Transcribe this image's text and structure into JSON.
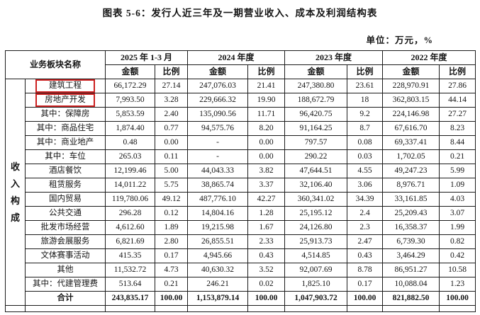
{
  "title": "图表 5-6：发行人近三年及一期营业收入、成本及利润结构表",
  "unit_label": "单位：万元，%",
  "highlight_color": "#cc2121",
  "table": {
    "corner_header": "业务板块名称",
    "side_label": "收入构成",
    "period_headers": [
      "2025 年 1-3 月",
      "2024 年度",
      "2023 年度",
      "2022 年度"
    ],
    "amount_header": "金额",
    "ratio_header": "比例",
    "rows": [
      {
        "label": "建筑工程",
        "boxed_label": true,
        "boxed_ratio": true,
        "bold": false,
        "cells": [
          "66,172.29",
          "27.14",
          "247,076.03",
          "21.41",
          "247,380.80",
          "23.61",
          "228,970.91",
          "27.86"
        ]
      },
      {
        "label": "房地产开发",
        "boxed_label": true,
        "boxed_ratio": true,
        "bold": false,
        "cells": [
          "7,993.50",
          "3.28",
          "229,666.32",
          "19.90",
          "188,672.79",
          "18",
          "362,803.15",
          "44.14"
        ]
      },
      {
        "label": "其中：保障房",
        "boxed_label": false,
        "boxed_ratio": false,
        "bold": false,
        "cells": [
          "5,853.59",
          "2.40",
          "135,090.56",
          "11.71",
          "96,420.75",
          "9.2",
          "224,146.98",
          "27.27"
        ]
      },
      {
        "label": "其中：商品住宅",
        "boxed_label": false,
        "boxed_ratio": false,
        "bold": false,
        "cells": [
          "1,874.40",
          "0.77",
          "94,575.76",
          "8.20",
          "91,164.25",
          "8.7",
          "67,616.70",
          "8.23"
        ]
      },
      {
        "label": "其中：商业地产",
        "boxed_label": false,
        "boxed_ratio": false,
        "bold": false,
        "cells": [
          "0.48",
          "0.00",
          "-",
          "0.00",
          "797.57",
          "0.08",
          "69,337.41",
          "8.44"
        ]
      },
      {
        "label": "其中：车位",
        "boxed_label": false,
        "boxed_ratio": false,
        "bold": false,
        "cells": [
          "265.03",
          "0.11",
          "-",
          "0.00",
          "290.22",
          "0.03",
          "1,702.05",
          "0.21"
        ]
      },
      {
        "label": "酒店餐饮",
        "boxed_label": false,
        "boxed_ratio": false,
        "bold": false,
        "cells": [
          "12,199.46",
          "5.00",
          "44,043.33",
          "3.82",
          "47,644.51",
          "4.55",
          "49,247.23",
          "5.99"
        ]
      },
      {
        "label": "租赁服务",
        "boxed_label": false,
        "boxed_ratio": false,
        "bold": false,
        "cells": [
          "14,011.22",
          "5.75",
          "38,865.74",
          "3.37",
          "32,106.40",
          "3.06",
          "8,976.71",
          "1.09"
        ]
      },
      {
        "label": "国内贸易",
        "boxed_label": false,
        "boxed_ratio": false,
        "bold": false,
        "cells": [
          "119,780.06",
          "49.12",
          "487,776.10",
          "42.27",
          "360,341.02",
          "34.39",
          "33,161.85",
          "4.03"
        ]
      },
      {
        "label": "公共交通",
        "boxed_label": false,
        "boxed_ratio": false,
        "bold": false,
        "cells": [
          "296.28",
          "0.12",
          "14,804.16",
          "1.28",
          "25,195.12",
          "2.4",
          "25,209.43",
          "3.07"
        ]
      },
      {
        "label": "批发市场经营",
        "boxed_label": false,
        "boxed_ratio": false,
        "bold": false,
        "cells": [
          "4,612.60",
          "1.89",
          "19,215.98",
          "1.67",
          "24,126.80",
          "2.3",
          "16,358.37",
          "1.99"
        ]
      },
      {
        "label": "旅游会展服务",
        "boxed_label": false,
        "boxed_ratio": false,
        "bold": false,
        "cells": [
          "6,821.69",
          "2.80",
          "26,855.51",
          "2.33",
          "25,913.73",
          "2.47",
          "6,739.30",
          "0.82"
        ]
      },
      {
        "label": "文体赛事活动",
        "boxed_label": false,
        "boxed_ratio": false,
        "bold": false,
        "cells": [
          "415.35",
          "0.17",
          "4,945.66",
          "0.43",
          "4,514.85",
          "0.43",
          "3,464.29",
          "0.42"
        ]
      },
      {
        "label": "其他",
        "boxed_label": false,
        "boxed_ratio": false,
        "bold": false,
        "cells": [
          "11,532.72",
          "4.73",
          "40,630.32",
          "3.52",
          "92,007.69",
          "8.78",
          "86,951.27",
          "10.58"
        ]
      },
      {
        "label": "其中：代建管理费",
        "boxed_label": false,
        "boxed_ratio": false,
        "bold": false,
        "cells": [
          "513.64",
          "0.21",
          "246.21",
          "0.02",
          "1,825.10",
          "0.17",
          "10,088.04",
          "1.23"
        ]
      },
      {
        "label": "合计",
        "boxed_label": false,
        "boxed_ratio": false,
        "bold": true,
        "cells": [
          "243,835.17",
          "100.00",
          "1,153,879.14",
          "100.00",
          "1,047,903.72",
          "100.00",
          "821,882.50",
          "100.00"
        ]
      }
    ]
  }
}
